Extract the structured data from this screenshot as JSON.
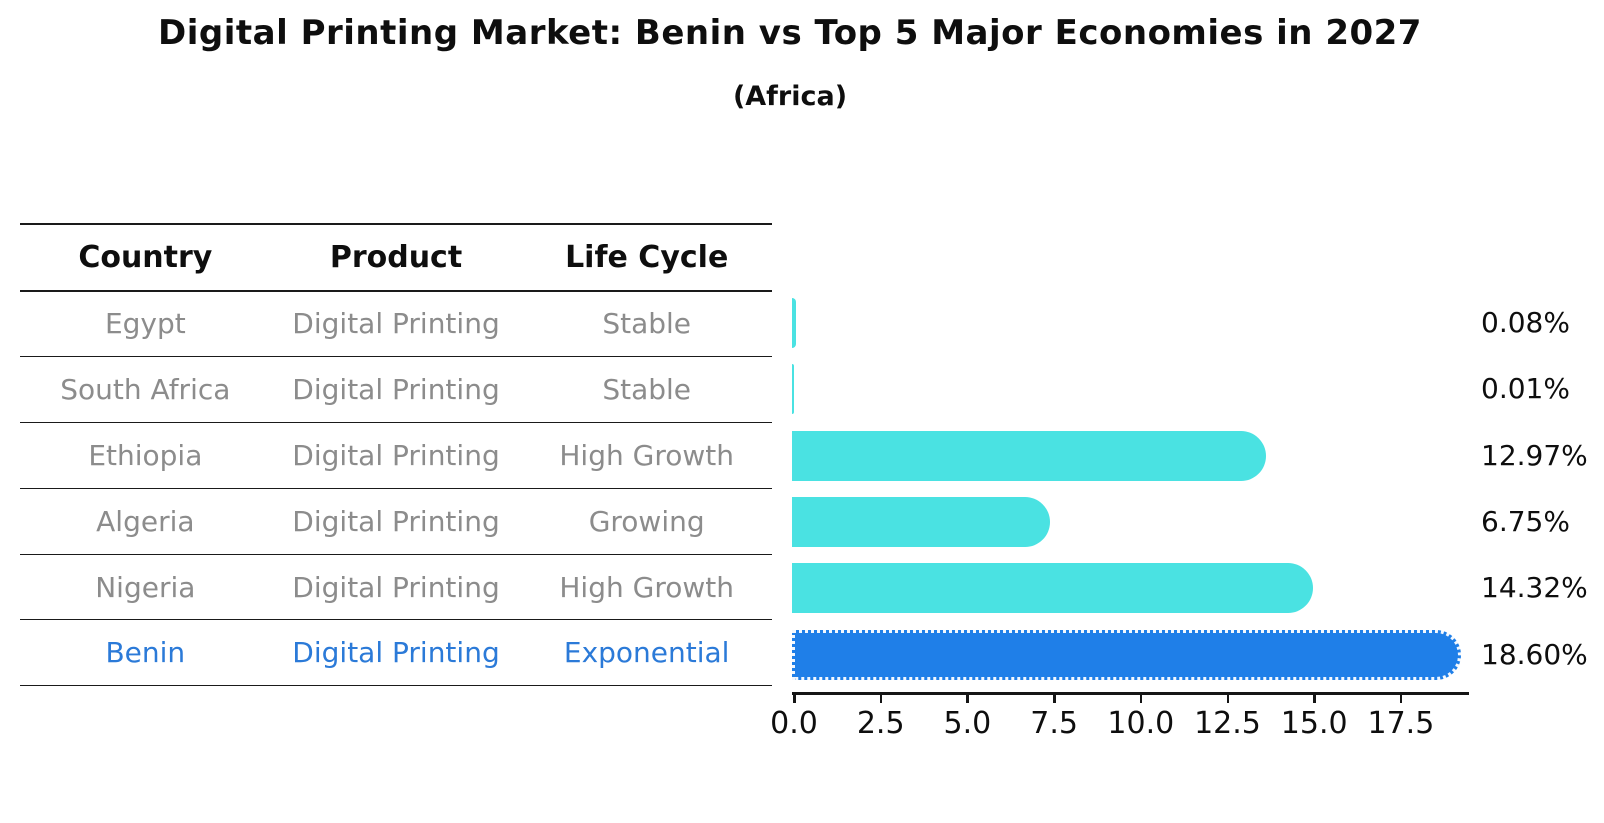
{
  "title": "Digital Printing Market: Benin vs Top 5 Major Economies in 2027",
  "subtitle": "(Africa)",
  "table": {
    "headers": [
      "Country",
      "Product",
      "Life Cycle"
    ],
    "rows": [
      {
        "country": "Egypt",
        "product": "Digital Printing",
        "life_cycle": "Stable",
        "highlight": false
      },
      {
        "country": "South Africa",
        "product": "Digital Printing",
        "life_cycle": "Stable",
        "highlight": false
      },
      {
        "country": "Ethiopia",
        "product": "Digital Printing",
        "life_cycle": "High Growth",
        "highlight": false
      },
      {
        "country": "Algeria",
        "product": "Digital Printing",
        "life_cycle": "Growing",
        "highlight": false
      },
      {
        "country": "Nigeria",
        "product": "Digital Printing",
        "life_cycle": "High Growth",
        "highlight": false
      },
      {
        "country": "Benin",
        "product": "Digital Printing",
        "life_cycle": "Exponential",
        "highlight": true
      }
    ]
  },
  "chart_data": {
    "type": "bar",
    "orientation": "horizontal",
    "title": "Digital Printing Market: Benin vs Top 5 Major Economies in 2027",
    "subtitle": "(Africa)",
    "categories": [
      "Egypt",
      "South Africa",
      "Ethiopia",
      "Algeria",
      "Nigeria",
      "Benin"
    ],
    "values": [
      0.08,
      0.01,
      12.97,
      6.75,
      14.32,
      18.6
    ],
    "value_labels": [
      "0.08%",
      "0.01%",
      "12.97%",
      "6.75%",
      "14.32%",
      "18.60%"
    ],
    "x_tick_labels": [
      "0.0",
      "2.5",
      "5.0",
      "7.5",
      "10.0",
      "12.5",
      "15.0",
      "17.5"
    ],
    "x_tick_values": [
      0,
      2.5,
      5,
      7.5,
      10,
      12.5,
      15,
      17.5
    ],
    "xlim": [
      0,
      19.5
    ],
    "grid": false,
    "legend_position": "none",
    "bar_color": "#4AE2E2",
    "highlight_bar_color": "#1F7FE8",
    "highlight_index": 5,
    "highlight_text_color": "#2B7AD8",
    "table_text_color": "#8C8C8C",
    "axis_text_color": "#0E0E0E",
    "background_color": "#FFFFFF"
  }
}
